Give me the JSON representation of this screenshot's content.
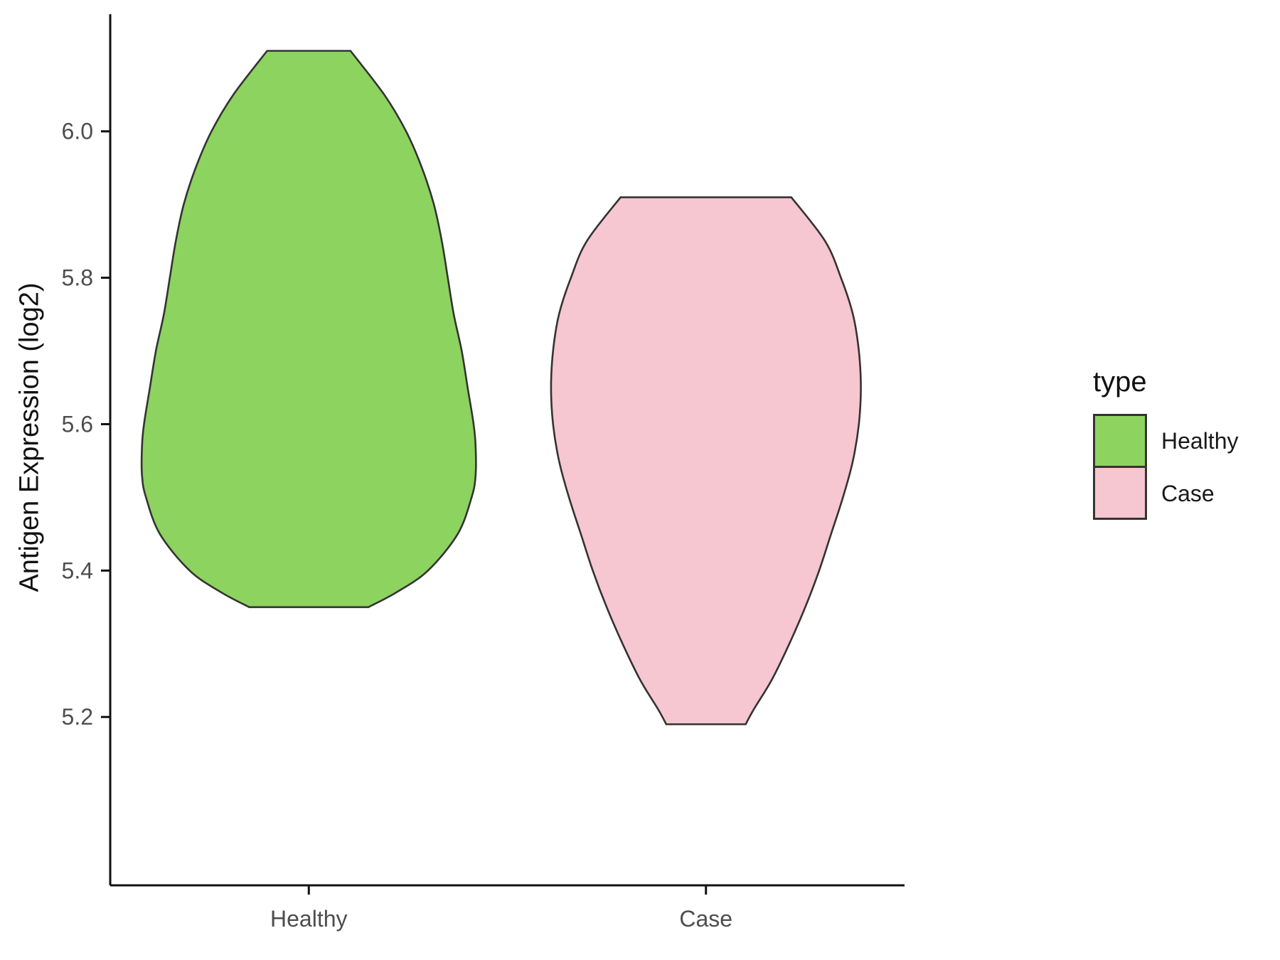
{
  "chart_data": {
    "type": "violin",
    "title": "",
    "xlabel": "",
    "ylabel": "Antigen Expression (log2)",
    "ylim": [
      4.97,
      6.16
    ],
    "yticks": [
      {
        "v": 5.2,
        "label": "5.2"
      },
      {
        "v": 5.4,
        "label": "5.4"
      },
      {
        "v": 5.6,
        "label": "5.6"
      },
      {
        "v": 5.8,
        "label": "5.8"
      },
      {
        "v": 6.0,
        "label": "6.0"
      }
    ],
    "categories": [
      "Healthy",
      "Case"
    ],
    "grid": "off",
    "legend_position": "right",
    "stroke_color": "#333333",
    "axis_color": "#111111",
    "tick_label_color": "#4d4d4d",
    "series": [
      {
        "name": "Healthy",
        "fill": "#8dd35f",
        "y_min": 5.35,
        "y_max": 6.11,
        "profile": [
          [
            6.11,
            0.105
          ],
          [
            6.05,
            0.19
          ],
          [
            6.0,
            0.245
          ],
          [
            5.95,
            0.285
          ],
          [
            5.9,
            0.315
          ],
          [
            5.85,
            0.335
          ],
          [
            5.8,
            0.35
          ],
          [
            5.75,
            0.365
          ],
          [
            5.7,
            0.385
          ],
          [
            5.65,
            0.4
          ],
          [
            5.6,
            0.415
          ],
          [
            5.57,
            0.42
          ],
          [
            5.53,
            0.42
          ],
          [
            5.5,
            0.41
          ],
          [
            5.45,
            0.375
          ],
          [
            5.4,
            0.3
          ],
          [
            5.37,
            0.22
          ],
          [
            5.35,
            0.15
          ]
        ]
      },
      {
        "name": "Case",
        "fill": "#f6c6d1",
        "y_min": 5.19,
        "y_max": 5.91,
        "profile": [
          [
            5.91,
            0.215
          ],
          [
            5.85,
            0.3
          ],
          [
            5.8,
            0.34
          ],
          [
            5.75,
            0.37
          ],
          [
            5.7,
            0.385
          ],
          [
            5.65,
            0.39
          ],
          [
            5.6,
            0.385
          ],
          [
            5.55,
            0.37
          ],
          [
            5.5,
            0.345
          ],
          [
            5.45,
            0.315
          ],
          [
            5.4,
            0.285
          ],
          [
            5.35,
            0.25
          ],
          [
            5.3,
            0.21
          ],
          [
            5.25,
            0.165
          ],
          [
            5.21,
            0.12
          ],
          [
            5.19,
            0.1
          ]
        ]
      }
    ]
  },
  "legend": {
    "title": "type",
    "items": [
      {
        "label": "Healthy",
        "color": "#8dd35f"
      },
      {
        "label": "Case",
        "color": "#f6c6d1"
      }
    ]
  }
}
